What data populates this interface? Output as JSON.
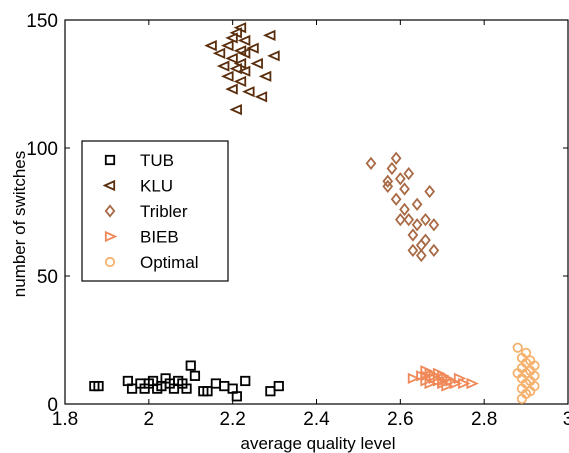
{
  "chart_data": {
    "type": "scatter",
    "xlabel": "average quality level",
    "ylabel": "number of switches",
    "xlim": [
      1.8,
      3.0
    ],
    "ylim": [
      0,
      150
    ],
    "x_ticks": [
      "1.8",
      "2",
      "2.2",
      "2.4",
      "2.6",
      "2.8",
      "3"
    ],
    "y_ticks": [
      "0",
      "50",
      "100",
      "150"
    ],
    "grid": false,
    "legend_position": "left",
    "series": [
      {
        "name": "TUB",
        "marker": "square",
        "color": "#000000",
        "points": [
          [
            1.87,
            7
          ],
          [
            1.88,
            7
          ],
          [
            1.95,
            9
          ],
          [
            1.96,
            6
          ],
          [
            1.98,
            8
          ],
          [
            1.99,
            6
          ],
          [
            2.0,
            8
          ],
          [
            2.01,
            9
          ],
          [
            2.02,
            6
          ],
          [
            2.03,
            7
          ],
          [
            2.04,
            10
          ],
          [
            2.05,
            8
          ],
          [
            2.06,
            6
          ],
          [
            2.07,
            9
          ],
          [
            2.08,
            8
          ],
          [
            2.09,
            6
          ],
          [
            2.1,
            15
          ],
          [
            2.11,
            11
          ],
          [
            2.13,
            5
          ],
          [
            2.14,
            5
          ],
          [
            2.16,
            8
          ],
          [
            2.18,
            7
          ],
          [
            2.2,
            6
          ],
          [
            2.21,
            3
          ],
          [
            2.23,
            9
          ],
          [
            2.29,
            5
          ],
          [
            2.31,
            7
          ]
        ]
      },
      {
        "name": "KLU",
        "marker": "triangle-left",
        "color": "#5a2e0c",
        "points": [
          [
            2.15,
            140
          ],
          [
            2.17,
            137
          ],
          [
            2.18,
            132
          ],
          [
            2.19,
            128
          ],
          [
            2.19,
            140
          ],
          [
            2.2,
            143
          ],
          [
            2.2,
            135
          ],
          [
            2.2,
            123
          ],
          [
            2.21,
            145
          ],
          [
            2.21,
            131
          ],
          [
            2.21,
            115
          ],
          [
            2.22,
            147
          ],
          [
            2.22,
            138
          ],
          [
            2.22,
            133
          ],
          [
            2.22,
            126
          ],
          [
            2.23,
            142
          ],
          [
            2.23,
            137
          ],
          [
            2.23,
            130
          ],
          [
            2.24,
            122
          ],
          [
            2.25,
            139
          ],
          [
            2.26,
            133
          ],
          [
            2.27,
            120
          ],
          [
            2.28,
            128
          ],
          [
            2.29,
            144
          ],
          [
            2.3,
            136
          ]
        ]
      },
      {
        "name": "Tribler",
        "marker": "diamond",
        "color": "#a86a45",
        "points": [
          [
            2.53,
            94
          ],
          [
            2.57,
            87
          ],
          [
            2.57,
            85
          ],
          [
            2.58,
            92
          ],
          [
            2.59,
            96
          ],
          [
            2.59,
            80
          ],
          [
            2.6,
            72
          ],
          [
            2.6,
            88
          ],
          [
            2.61,
            84
          ],
          [
            2.61,
            76
          ],
          [
            2.62,
            90
          ],
          [
            2.62,
            72
          ],
          [
            2.63,
            66
          ],
          [
            2.63,
            60
          ],
          [
            2.64,
            78
          ],
          [
            2.64,
            70
          ],
          [
            2.65,
            62
          ],
          [
            2.65,
            58
          ],
          [
            2.66,
            72
          ],
          [
            2.66,
            64
          ],
          [
            2.67,
            83
          ],
          [
            2.68,
            70
          ],
          [
            2.68,
            60
          ]
        ]
      },
      {
        "name": "BIEB",
        "marker": "triangle-right",
        "color": "#f08858",
        "points": [
          [
            2.63,
            10
          ],
          [
            2.65,
            11
          ],
          [
            2.66,
            13
          ],
          [
            2.66,
            9
          ],
          [
            2.67,
            12
          ],
          [
            2.67,
            8
          ],
          [
            2.68,
            11
          ],
          [
            2.68,
            10
          ],
          [
            2.69,
            9
          ],
          [
            2.69,
            12
          ],
          [
            2.7,
            8
          ],
          [
            2.7,
            11
          ],
          [
            2.71,
            10
          ],
          [
            2.71,
            7
          ],
          [
            2.72,
            9
          ],
          [
            2.73,
            8
          ],
          [
            2.74,
            10
          ],
          [
            2.75,
            8
          ],
          [
            2.77,
            8
          ],
          [
            2.66,
            11
          ],
          [
            2.7,
            9
          ]
        ]
      },
      {
        "name": "Optimal",
        "marker": "circle",
        "color": "#f5b26e",
        "points": [
          [
            2.88,
            22
          ],
          [
            2.89,
            18
          ],
          [
            2.89,
            14
          ],
          [
            2.89,
            10
          ],
          [
            2.89,
            6
          ],
          [
            2.9,
            20
          ],
          [
            2.9,
            16
          ],
          [
            2.9,
            12
          ],
          [
            2.9,
            8
          ],
          [
            2.9,
            4
          ],
          [
            2.91,
            17
          ],
          [
            2.91,
            13
          ],
          [
            2.91,
            9
          ],
          [
            2.91,
            5
          ],
          [
            2.92,
            15
          ],
          [
            2.92,
            11
          ],
          [
            2.92,
            7
          ],
          [
            2.88,
            12
          ],
          [
            2.89,
            2
          ]
        ]
      }
    ]
  }
}
